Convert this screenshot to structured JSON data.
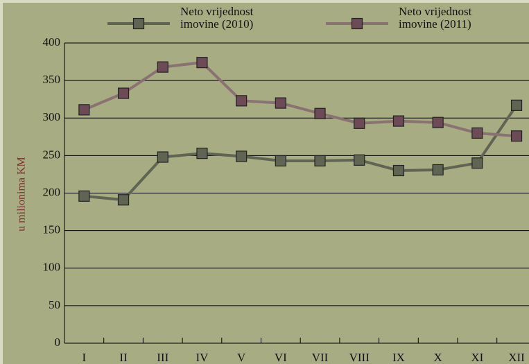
{
  "chart_data": {
    "type": "line",
    "y_label": "u milionima KM",
    "categories": [
      "I",
      "II",
      "III",
      "IV",
      "V",
      "VI",
      "VII",
      "VIII",
      "IX",
      "X",
      "XI",
      "XII"
    ],
    "series": [
      {
        "name": "Neto vrijednost imovine (2010)",
        "color": "#5f6552",
        "marker_color": "#5f6552",
        "values": [
          196,
          191,
          248,
          253,
          249,
          243,
          243,
          244,
          230,
          231,
          240,
          317
        ]
      },
      {
        "name": "Neto vrijednost imovine (2011)",
        "color": "#8a7272",
        "marker_color": "#6c4a56",
        "values": [
          311,
          333,
          368,
          374,
          323,
          320,
          306,
          293,
          296,
          294,
          280,
          276
        ]
      }
    ],
    "ylim": [
      0,
      400
    ],
    "yticks": [
      0,
      50,
      100,
      150,
      200,
      250,
      300,
      350,
      400
    ],
    "grid": true
  }
}
